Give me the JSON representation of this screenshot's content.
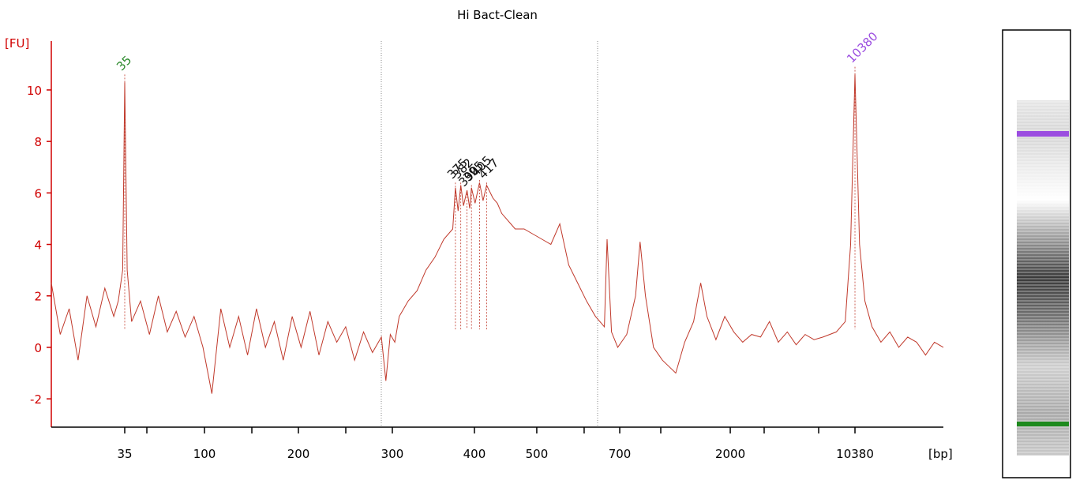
{
  "chart_data": {
    "type": "line",
    "title": "Hi Bact-Clean",
    "y_label": "[FU]",
    "x_label": "[bp]",
    "xlim": [
      0,
      100
    ],
    "ylim": [
      -3.1,
      11.9
    ],
    "yticks": [
      -2,
      0,
      2,
      4,
      6,
      8,
      10
    ],
    "xticks": [
      {
        "value": 8.23,
        "label": "35"
      },
      {
        "value": 10.71,
        "label": null
      },
      {
        "value": 17.17,
        "label": "100"
      },
      {
        "value": 22.48,
        "label": null
      },
      {
        "value": 27.7,
        "label": "200"
      },
      {
        "value": 33.01,
        "label": null
      },
      {
        "value": 38.23,
        "label": "300"
      },
      {
        "value": 47.43,
        "label": "400"
      },
      {
        "value": 54.42,
        "label": "500"
      },
      {
        "value": 59.73,
        "label": null
      },
      {
        "value": 63.72,
        "label": "700"
      },
      {
        "value": 68.32,
        "label": null
      },
      {
        "value": 76.11,
        "label": "2000"
      },
      {
        "value": 79.91,
        "label": null
      },
      {
        "value": 86.02,
        "label": null
      },
      {
        "value": 90.09,
        "label": "10380"
      }
    ],
    "series": [
      {
        "color": "#c0392b",
        "x": [
          0,
          1,
          2,
          3,
          4,
          5,
          6,
          7,
          7.5,
          8,
          8.23,
          8.5,
          9,
          10,
          11,
          12,
          13,
          14,
          15,
          16,
          17,
          18,
          19,
          20,
          21,
          22,
          23,
          24,
          25,
          26,
          27,
          28,
          29,
          30,
          31,
          32,
          33,
          34,
          35,
          36,
          37,
          37.5,
          38,
          38.5,
          39,
          40,
          41,
          42,
          43,
          44,
          45,
          45.3,
          45.6,
          45.9,
          46.2,
          46.6,
          46.9,
          47.1,
          47.5,
          48,
          48.4,
          48.8,
          49.5,
          50,
          50.5,
          51,
          51.5,
          52,
          53,
          54,
          55,
          56,
          57,
          58,
          59,
          60,
          61,
          62,
          62.3,
          62.8,
          63.5,
          64.5,
          65.5,
          66,
          66.6,
          67.5,
          68.5,
          70,
          71,
          72,
          72.8,
          73.5,
          74.5,
          75.5,
          76.5,
          77.5,
          78.5,
          79.5,
          80.5,
          81.5,
          82.5,
          83.5,
          84.5,
          85.5,
          86.5,
          88,
          89,
          89.6,
          90.09,
          90.6,
          91.2,
          92,
          93,
          94,
          95,
          96,
          97,
          98,
          99,
          100
        ],
        "values": [
          2.5,
          0.5,
          1.5,
          -0.5,
          2,
          0.8,
          2.3,
          1.2,
          1.8,
          3,
          10.3,
          3,
          1,
          1.8,
          0.5,
          2,
          0.6,
          1.4,
          0.4,
          1.2,
          0,
          -1.8,
          1.5,
          0,
          1.2,
          -0.3,
          1.5,
          0,
          1,
          -0.5,
          1.2,
          0,
          1.4,
          -0.3,
          1,
          0.2,
          0.8,
          -0.5,
          0.6,
          -0.2,
          0.4,
          -1.3,
          0.5,
          0.2,
          1.2,
          1.8,
          2.2,
          3,
          3.5,
          4.2,
          4.6,
          6.2,
          5.3,
          6.3,
          5.5,
          6.1,
          5.4,
          6.2,
          5.6,
          6.4,
          5.7,
          6.3,
          5.8,
          5.6,
          5.2,
          5,
          4.8,
          4.6,
          4.6,
          4.4,
          4.2,
          4,
          4.8,
          3.2,
          2.5,
          1.8,
          1.2,
          0.8,
          4.2,
          0.6,
          0,
          0.5,
          2,
          4.1,
          2,
          0,
          -0.5,
          -1,
          0.2,
          1,
          2.5,
          1.2,
          0.3,
          1.2,
          0.6,
          0.2,
          0.5,
          0.4,
          1,
          0.2,
          0.6,
          0.1,
          0.5,
          0.3,
          0.4,
          0.6,
          1,
          4,
          10.6,
          4,
          1.8,
          0.8,
          0.2,
          0.6,
          0,
          0.4,
          0.2,
          -0.3,
          0.2,
          0
        ]
      }
    ],
    "annotations": [
      {
        "text": "35",
        "x": 8.23,
        "y": 10.6,
        "color": "#2e8b2e"
      },
      {
        "text": "375",
        "x": 45.3,
        "y": 6.4,
        "color": "#111111"
      },
      {
        "text": "382",
        "x": 45.9,
        "y": 6.4,
        "color": "#111111"
      },
      {
        "text": "390",
        "x": 46.6,
        "y": 6.1,
        "color": "#111111"
      },
      {
        "text": "395",
        "x": 47.1,
        "y": 6.3,
        "color": "#111111"
      },
      {
        "text": "405",
        "x": 48.0,
        "y": 6.5,
        "color": "#111111"
      },
      {
        "text": "417",
        "x": 48.8,
        "y": 6.4,
        "color": "#111111"
      },
      {
        "text": "10380",
        "x": 90.09,
        "y": 10.9,
        "color": "#9b4de0"
      }
    ]
  }
}
